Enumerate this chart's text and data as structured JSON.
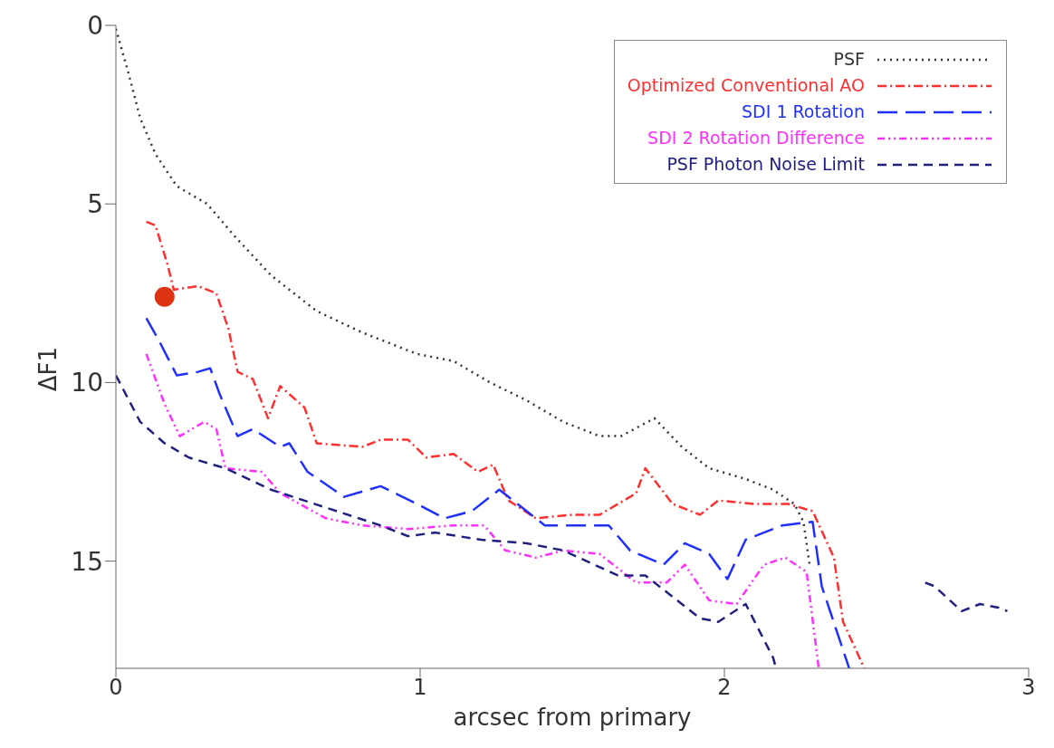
{
  "chart_data": {
    "type": "line",
    "xlabel": "arcsec from primary",
    "ylabel": "ΔF1",
    "xlim": [
      0,
      3
    ],
    "xticks": [
      0,
      1,
      2,
      3
    ],
    "ylim": [
      18,
      0
    ],
    "yticks": [
      0,
      5,
      10,
      15
    ],
    "grid": false,
    "legend": "top right",
    "series": [
      {
        "name": "PSF",
        "color": "#333333",
        "line_style": "dotted",
        "x": [
          0.0,
          0.04,
          0.08,
          0.13,
          0.2,
          0.3,
          0.39,
          0.51,
          0.66,
          0.81,
          0.99,
          1.11,
          1.23,
          1.35,
          1.47,
          1.59,
          1.66,
          1.77,
          1.86,
          1.95,
          2.07,
          2.16,
          2.23,
          2.26,
          2.28
        ],
        "values": [
          0.1,
          1.3,
          2.6,
          3.6,
          4.5,
          5.0,
          5.9,
          7.0,
          8.0,
          8.6,
          9.2,
          9.4,
          10.0,
          10.5,
          11.1,
          11.5,
          11.5,
          11.0,
          11.8,
          12.4,
          12.7,
          13.0,
          13.4,
          13.9,
          15.1
        ]
      },
      {
        "name": "Optimized Conventional AO",
        "color": "#ff3030",
        "line_style": "dashdot",
        "x": [
          0.1,
          0.13,
          0.17,
          0.19,
          0.27,
          0.33,
          0.37,
          0.4,
          0.45,
          0.5,
          0.54,
          0.62,
          0.66,
          0.81,
          0.87,
          0.96,
          1.02,
          1.11,
          1.19,
          1.24,
          1.29,
          1.38,
          1.5,
          1.59,
          1.71,
          1.74,
          1.83,
          1.92,
          1.98,
          2.1,
          2.21,
          2.29,
          2.36,
          2.39,
          2.46
        ],
        "values": [
          5.5,
          5.6,
          6.7,
          7.4,
          7.3,
          7.5,
          8.5,
          9.7,
          9.9,
          11.0,
          10.1,
          10.7,
          11.7,
          11.8,
          11.6,
          11.6,
          12.1,
          12.0,
          12.5,
          12.3,
          13.3,
          13.8,
          13.7,
          13.7,
          13.1,
          12.4,
          13.4,
          13.7,
          13.3,
          13.4,
          13.4,
          13.6,
          14.9,
          16.7,
          18
        ]
      },
      {
        "name": "SDI 1 Rotation",
        "color": "#2030ff",
        "line_style": "longdash",
        "x": [
          0.1,
          0.14,
          0.17,
          0.2,
          0.27,
          0.31,
          0.34,
          0.4,
          0.45,
          0.54,
          0.57,
          0.63,
          0.75,
          0.87,
          0.99,
          1.08,
          1.17,
          1.26,
          1.32,
          1.41,
          1.5,
          1.62,
          1.69,
          1.8,
          1.87,
          1.95,
          2.01,
          2.07,
          2.19,
          2.29,
          2.32,
          2.41
        ],
        "values": [
          8.2,
          8.8,
          9.3,
          9.8,
          9.7,
          9.6,
          10.3,
          11.5,
          11.3,
          11.8,
          11.7,
          12.5,
          13.2,
          12.9,
          13.4,
          13.8,
          13.6,
          13.0,
          13.4,
          14.0,
          14.0,
          14.0,
          14.7,
          15.1,
          14.5,
          14.8,
          15.5,
          14.4,
          14.0,
          13.9,
          15.7,
          18
        ]
      },
      {
        "name": "SDI 2 Rotation Difference",
        "color": "#ff30ff",
        "line_style": "dashdotdot",
        "x": [
          0.1,
          0.16,
          0.21,
          0.29,
          0.33,
          0.36,
          0.48,
          0.54,
          0.69,
          0.81,
          0.96,
          1.11,
          1.21,
          1.28,
          1.38,
          1.47,
          1.59,
          1.71,
          1.81,
          1.87,
          1.95,
          2.04,
          2.13,
          2.2,
          2.27,
          2.31
        ],
        "values": [
          9.2,
          10.6,
          11.5,
          11.1,
          11.3,
          12.4,
          12.5,
          13.1,
          13.8,
          14.0,
          14.1,
          14.0,
          14.0,
          14.7,
          14.9,
          14.7,
          14.8,
          15.6,
          15.6,
          15.1,
          16.1,
          16.2,
          15.1,
          14.9,
          15.3,
          18
        ]
      },
      {
        "name": "PSF Photon Noise Limit",
        "color": "#202080",
        "line_style": "dashed",
        "x": [
          0.0,
          0.08,
          0.16,
          0.24,
          0.36,
          0.51,
          0.69,
          0.87,
          0.96,
          1.05,
          1.2,
          1.35,
          1.47,
          1.65,
          1.74,
          1.83,
          1.92,
          1.98,
          2.07,
          2.16,
          2.17,
          2.4,
          2.66,
          2.69,
          2.78,
          2.84,
          2.9,
          2.93
        ],
        "values": [
          9.8,
          11.1,
          11.7,
          12.1,
          12.4,
          13.0,
          13.5,
          14.0,
          14.3,
          14.2,
          14.4,
          14.5,
          14.7,
          15.4,
          15.4,
          16.0,
          16.6,
          16.7,
          16.2,
          17.7,
          18,
          null,
          15.6,
          15.7,
          16.4,
          16.2,
          16.3,
          16.4
        ]
      },
      {
        "type": "scatter",
        "marker": "circle",
        "color": "#dd3311",
        "x": [
          0.16
        ],
        "values": [
          7.6
        ]
      }
    ]
  }
}
